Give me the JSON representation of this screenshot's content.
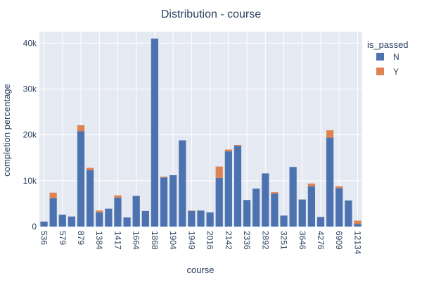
{
  "chart_data": {
    "type": "bar",
    "stacked": true,
    "title": "Distribution - course",
    "xlabel": "course",
    "ylabel": "completion percentage",
    "ylim": [
      0,
      42500
    ],
    "yticks": [
      0,
      10000,
      20000,
      30000,
      40000
    ],
    "ytick_labels": [
      "0",
      "10k",
      "20k",
      "30k",
      "40k"
    ],
    "xtick_labels": [
      "536",
      "579",
      "879",
      "1384",
      "1417",
      "1664",
      "1868",
      "1904",
      "1949",
      "2016",
      "2142",
      "2336",
      "2892",
      "3251",
      "3646",
      "4276",
      "6909",
      "12134"
    ],
    "grid": true,
    "legend": {
      "title": "is_passed",
      "placement": "right"
    },
    "series": [
      {
        "name": "N",
        "color": "#4c72b0",
        "values": [
          1100,
          6200,
          2600,
          2200,
          20800,
          12300,
          3100,
          3900,
          6300,
          2000,
          6700,
          3400,
          41000,
          10700,
          11200,
          18800,
          3400,
          3500,
          3100,
          10600,
          16400,
          17600,
          5800,
          8300,
          11600,
          7200,
          2400,
          13000,
          5900,
          8800,
          2100,
          19400,
          8400,
          5700,
          600
        ]
      },
      {
        "name": "Y",
        "color": "#dd8452",
        "values": [
          0,
          1200,
          0,
          0,
          1300,
          500,
          400,
          0,
          500,
          0,
          0,
          0,
          0,
          200,
          0,
          0,
          100,
          0,
          0,
          2500,
          400,
          200,
          0,
          0,
          0,
          300,
          0,
          0,
          0,
          600,
          0,
          1600,
          400,
          0,
          700
        ]
      }
    ]
  }
}
